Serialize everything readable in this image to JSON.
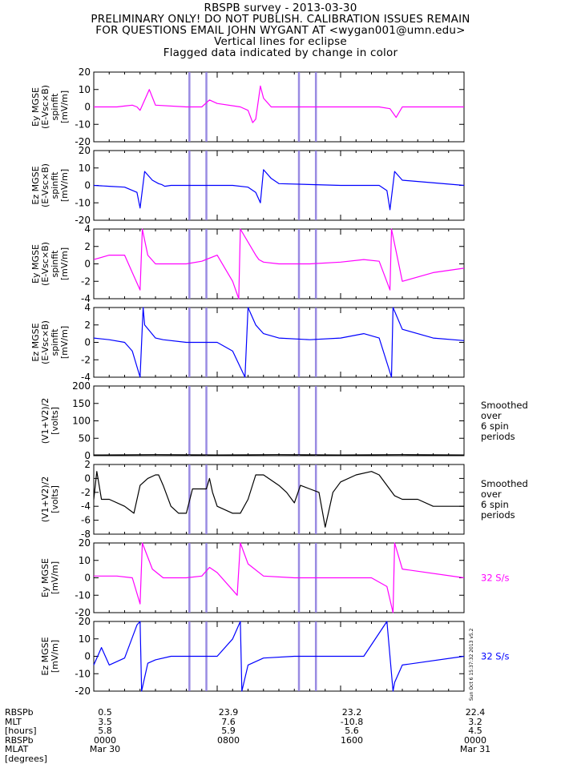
{
  "header": {
    "lines": [
      "RBSPB survey - 2013-03-30",
      "PRELIMINARY ONLY! DO NOT PUBLISH. CALIBRATION ISSUES REMAIN",
      "FOR QUESTIONS EMAIL JOHN WYGANT AT <wygan001@umn.edu>",
      "Vertical lines for eclipse",
      "Flagged data indicated by change in color"
    ]
  },
  "colors": {
    "magenta": "#ff00ff",
    "blue": "#0000ff",
    "black": "#000000",
    "eclipse": "#8877dd"
  },
  "chart_data": {
    "type": "line",
    "x_unit": "hours",
    "xlim": [
      0,
      24
    ],
    "eclipse_lines_hours": [
      6.2,
      7.3,
      13.3,
      14.4
    ],
    "panels": [
      {
        "ylabel": [
          "Ey MGSE",
          "(E-Vsc×B)",
          "spinfit",
          "[mV/m]"
        ],
        "ylim": [
          -20,
          20
        ],
        "ticks": [
          -20,
          -10,
          0,
          10,
          20
        ],
        "color": "magenta",
        "right_label": [],
        "series": {
          "name": "",
          "x": [
            0,
            1.5,
            2.0,
            2.5,
            2.8,
            3.0,
            3.6,
            4.0,
            6.0,
            6.4,
            7.0,
            7.5,
            8.0,
            9.5,
            10.0,
            10.3,
            10.5,
            10.8,
            11.0,
            11.5,
            13.0,
            14.0,
            16.0,
            17.0,
            18.5,
            19.2,
            19.6,
            20.0,
            24.0
          ],
          "y": [
            0,
            0,
            0.5,
            1,
            0,
            -2,
            10,
            1,
            0,
            0,
            0,
            4,
            2,
            0,
            -2,
            -9,
            -7,
            12,
            5,
            0,
            0,
            0,
            0,
            0,
            0,
            -1,
            -6,
            0,
            0
          ]
        }
      },
      {
        "ylabel": [
          "Ez MGSE",
          "(E-Vsc×B)",
          "spinfit",
          "[mV/m]"
        ],
        "ylim": [
          -20,
          20
        ],
        "ticks": [
          -20,
          -10,
          0,
          10,
          20
        ],
        "color": "blue",
        "right_label": [],
        "series": {
          "name": "",
          "x": [
            0,
            1.0,
            2.0,
            2.8,
            3.0,
            3.3,
            3.8,
            4.2,
            4.4,
            4.6,
            5.0,
            6.0,
            8.0,
            9.0,
            10.0,
            10.5,
            10.8,
            11.0,
            11.5,
            12.0,
            16.0,
            17.5,
            18.5,
            19.0,
            19.2,
            19.5,
            20.0,
            24.0
          ],
          "y": [
            0,
            -0.5,
            -1,
            -4,
            -13,
            8,
            3,
            1,
            0.5,
            -0.5,
            0,
            0,
            0,
            0,
            -1,
            -4,
            -10,
            9,
            4,
            1,
            0,
            0,
            0,
            -3,
            -14,
            8,
            3,
            0
          ]
        }
      },
      {
        "ylabel": [
          "Ey MGSE",
          "(E-Vsc×B)",
          "spinfit",
          "[mV/m]"
        ],
        "ylim": [
          -4,
          4
        ],
        "ticks": [
          -4,
          -2,
          0,
          2,
          4
        ],
        "color": "magenta",
        "right_label": [],
        "series": {
          "name": "",
          "x": [
            0,
            1.0,
            2.0,
            2.5,
            3.0,
            3.15,
            3.5,
            4.0,
            6.0,
            7.0,
            8.0,
            9.0,
            9.4,
            9.5,
            10.5,
            10.7,
            11.0,
            12.0,
            14.0,
            16.0,
            17.5,
            18.5,
            19.2,
            19.3,
            20.0,
            22.0,
            24.0
          ],
          "y": [
            0.5,
            1.0,
            1.0,
            -1,
            -3,
            4,
            1,
            0,
            0,
            0.3,
            1.0,
            -2,
            -4,
            4,
            1,
            0.5,
            0.2,
            0,
            0,
            0.2,
            0.5,
            0.3,
            -3,
            4,
            -2,
            -1,
            -0.5
          ]
        }
      },
      {
        "ylabel": [
          "Ez MGSE",
          "(E-Vsc×B)",
          "spinfit",
          "[mV/m]"
        ],
        "ylim": [
          -4,
          4
        ],
        "ticks": [
          -4,
          -2,
          0,
          2,
          4
        ],
        "color": "blue",
        "right_label": [],
        "series": {
          "name": "",
          "x": [
            0,
            1.0,
            2.0,
            2.5,
            3.0,
            3.2,
            3.3,
            4.0,
            4.5,
            6.0,
            7.0,
            8.0,
            9.0,
            9.8,
            10.0,
            10.5,
            11.0,
            12.0,
            14.0,
            16.0,
            17.5,
            18.5,
            19.3,
            19.4,
            20.0,
            22.0,
            24.0
          ],
          "y": [
            0.5,
            0.3,
            0,
            -1,
            -4,
            4,
            2,
            0.5,
            0.3,
            0,
            0,
            0,
            -1,
            -4,
            4,
            2,
            1,
            0.5,
            0.3,
            0.5,
            1.0,
            0.5,
            -4,
            4,
            1.5,
            0.5,
            0.2
          ]
        }
      },
      {
        "ylabel": [
          "(V1+V2)/2",
          "[volts]"
        ],
        "ylim": [
          0,
          200
        ],
        "ticks": [
          0,
          50,
          100,
          150,
          200
        ],
        "color": "black",
        "right_label": [
          "Smoothed",
          "over",
          "6 spin",
          "periods"
        ],
        "series": {
          "name": "",
          "x": [
            0,
            4,
            8,
            12,
            16,
            20,
            24
          ],
          "y": [
            2,
            3,
            2,
            3,
            2,
            3,
            2
          ]
        }
      },
      {
        "ylabel": [
          "(V1+V2)/2",
          "[volts]"
        ],
        "ylim": [
          -8,
          2
        ],
        "ticks": [
          -8,
          -6,
          -4,
          -2,
          0,
          2
        ],
        "color": "black",
        "right_label": [
          "Smoothed",
          "over",
          "6 spin",
          "periods"
        ],
        "series": {
          "name": "",
          "x": [
            0,
            0.2,
            0.5,
            1.0,
            2.0,
            2.6,
            3.0,
            3.5,
            4.0,
            4.2,
            4.5,
            5.0,
            5.5,
            6.0,
            6.4,
            7.0,
            7.3,
            7.5,
            7.7,
            8.0,
            9.0,
            9.5,
            10.0,
            10.5,
            11.0,
            12.0,
            12.5,
            13.0,
            13.4,
            14.0,
            14.6,
            15.0,
            15.5,
            16.0,
            17.0,
            18.0,
            18.5,
            19.0,
            19.5,
            20.0,
            21.0,
            22.0,
            23.0,
            24.0
          ],
          "y": [
            -3,
            1,
            -3,
            -3,
            -4,
            -5,
            -1,
            0,
            0.5,
            0.5,
            -1,
            -4,
            -5,
            -5,
            -1.5,
            -1.5,
            -1.5,
            0,
            -2,
            -4,
            -5,
            -5,
            -3,
            0.5,
            0.5,
            -1,
            -2,
            -3.5,
            -1,
            -1.5,
            -2,
            -7,
            -2,
            -0.5,
            0.5,
            1,
            0.5,
            -1,
            -2.5,
            -3,
            -3,
            -4,
            -4,
            -4
          ]
        }
      },
      {
        "ylabel": [
          "Ey MGSE",
          "[mV/m]"
        ],
        "ylim": [
          -20,
          20
        ],
        "ticks": [
          -20,
          -10,
          0,
          10,
          20
        ],
        "color": "magenta",
        "right_label": [
          "32 S/s"
        ],
        "series": {
          "name": "",
          "x": [
            0,
            1.5,
            2.5,
            3.0,
            3.15,
            3.8,
            4.5,
            6.0,
            7.0,
            7.5,
            8.0,
            9.3,
            9.5,
            10.0,
            11.0,
            13.0,
            16.0,
            18.0,
            19.0,
            19.4,
            19.5,
            20.0,
            24.0
          ],
          "y": [
            1,
            1,
            0,
            -15,
            20,
            5,
            0,
            0,
            1,
            6,
            3,
            -10,
            20,
            8,
            1,
            0,
            0,
            0,
            -5,
            -20,
            20,
            5,
            0
          ]
        }
      },
      {
        "ylabel": [
          "Ez MGSE",
          "[mV/m]"
        ],
        "ylim": [
          -20,
          20
        ],
        "ticks": [
          -20,
          -10,
          0,
          10,
          20
        ],
        "color": "blue",
        "right_label": [
          "32 S/s"
        ],
        "series": {
          "name": "",
          "x": [
            0,
            0.5,
            1.0,
            2.0,
            2.8,
            3.0,
            3.1,
            3.5,
            4.0,
            5.0,
            6.0,
            7.0,
            8.0,
            9.0,
            9.5,
            9.6,
            10.0,
            11.0,
            13.0,
            15.0,
            16.0,
            17.5,
            19.0,
            19.4,
            19.5,
            20.0,
            24.0
          ],
          "y": [
            -5,
            5,
            -5,
            -1,
            18,
            20,
            -20,
            -4,
            -2,
            0,
            0,
            0,
            0,
            10,
            20,
            -20,
            -5,
            -1,
            0,
            0,
            0,
            0,
            20,
            -20,
            -15,
            -5,
            0
          ]
        }
      }
    ]
  },
  "footer": {
    "row_labels": [
      "RBSPb",
      "MLT",
      "[hours]",
      "RBSPb",
      "MLAT",
      "[degrees]"
    ],
    "columns": [
      {
        "lines": [
          "0.5",
          "3.5",
          "5.8",
          "0000",
          "Mar 30"
        ]
      },
      {
        "lines": [
          "23.9",
          "7.6",
          "5.9",
          "0800"
        ]
      },
      {
        "lines": [
          "23.2",
          "-10.8",
          "5.6",
          "1600"
        ]
      },
      {
        "lines": [
          "22.4",
          "3.2",
          "4.5",
          "0000",
          "Mar 31"
        ]
      }
    ],
    "side_stamp": "Sun Oct  6 15:37:32 2013 v5.2"
  }
}
